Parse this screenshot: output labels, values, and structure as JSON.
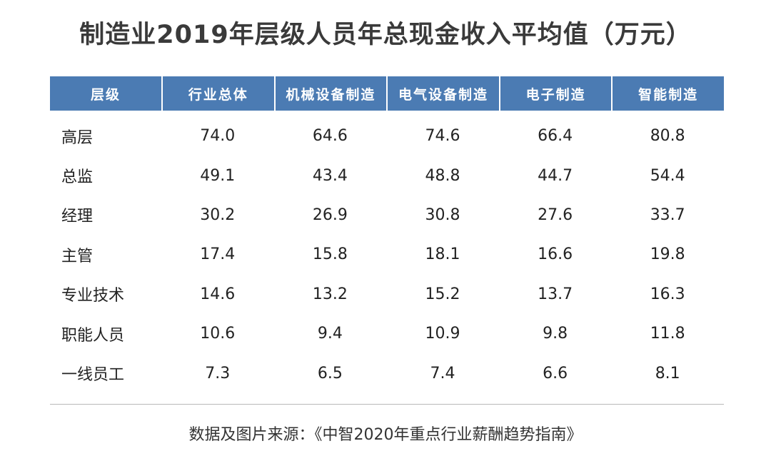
{
  "title": "制造业2019年层级人员年总现金收入平均值（万元）",
  "colors": {
    "header_bg": "#4b7bb3",
    "header_text": "#ffffff",
    "title_text": "#3a3a3a",
    "divider": "#b9b9b9"
  },
  "chart_data": {
    "type": "table",
    "title": "制造业2019年层级人员年总现金收入平均值（万元）",
    "columns": [
      "层级",
      "行业总体",
      "机械设备制造",
      "电气设备制造",
      "电子制造",
      "智能制造"
    ],
    "rows": [
      {
        "label": "高层",
        "values": [
          "74.0",
          "64.6",
          "74.6",
          "66.4",
          "80.8"
        ]
      },
      {
        "label": "总监",
        "values": [
          "49.1",
          "43.4",
          "48.8",
          "44.7",
          "54.4"
        ]
      },
      {
        "label": "经理",
        "values": [
          "30.2",
          "26.9",
          "30.8",
          "27.6",
          "33.7"
        ]
      },
      {
        "label": "主管",
        "values": [
          "17.4",
          "15.8",
          "18.1",
          "16.6",
          "19.8"
        ]
      },
      {
        "label": "专业技术",
        "values": [
          "14.6",
          "13.2",
          "15.2",
          "13.7",
          "16.3"
        ]
      },
      {
        "label": "职能人员",
        "values": [
          "10.6",
          "9.4",
          "10.9",
          "9.8",
          "11.8"
        ]
      },
      {
        "label": "一线员工",
        "values": [
          "7.3",
          "6.5",
          "7.4",
          "6.6",
          "8.1"
        ]
      }
    ]
  },
  "source": "数据及图片来源：《中智2020年重点行业薪酬趋势指南》"
}
